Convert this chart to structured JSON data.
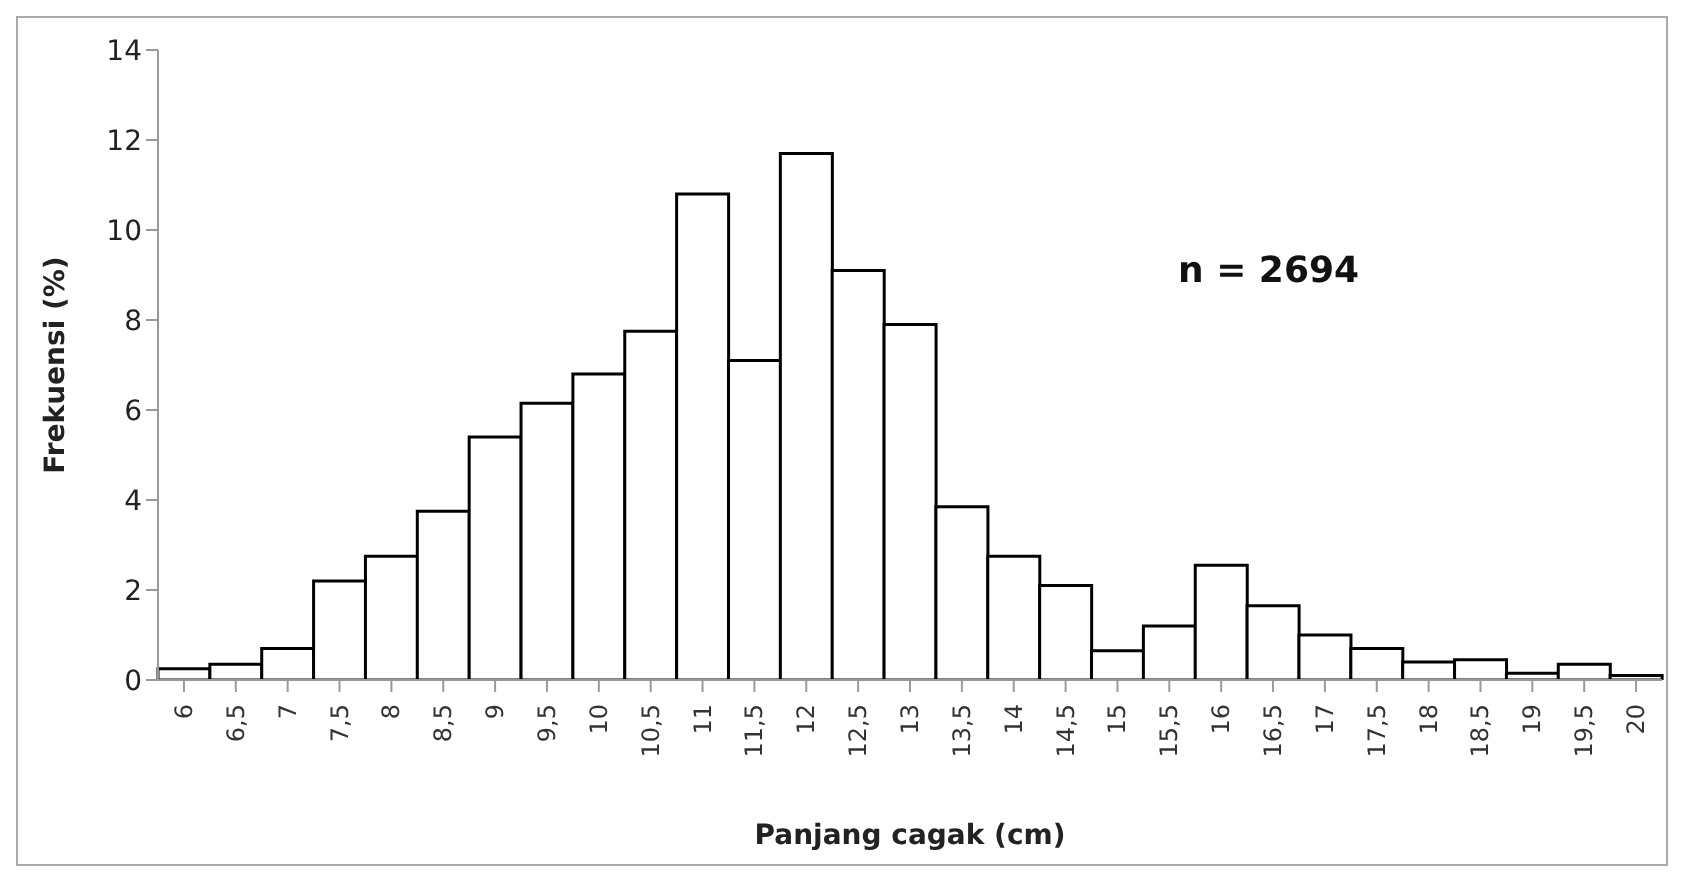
{
  "chart_data": {
    "type": "bar",
    "xlabel": "Panjang cagak (cm)",
    "ylabel": "Frekuensi (%)",
    "categories": [
      "6",
      "6,5",
      "7",
      "7,5",
      "8",
      "8,5",
      "9",
      "9,5",
      "10",
      "10,5",
      "11",
      "11,5",
      "12",
      "12,5",
      "13",
      "13,5",
      "14",
      "14,5",
      "15",
      "15,5",
      "16",
      "16,5",
      "17",
      "17,5",
      "18",
      "18,5",
      "19",
      "19,5",
      "20"
    ],
    "values": [
      0.25,
      0.35,
      0.7,
      2.2,
      2.75,
      3.75,
      5.4,
      6.15,
      6.8,
      7.75,
      10.8,
      7.1,
      11.7,
      9.1,
      7.9,
      3.85,
      2.75,
      2.1,
      0.65,
      1.2,
      2.55,
      1.65,
      1.0,
      0.7,
      0.4,
      0.45,
      0.15,
      0.35,
      0.1
    ],
    "color": "#ffffff",
    "ylim": [
      0,
      14
    ],
    "yticks": [
      0,
      2,
      4,
      6,
      8,
      10,
      12,
      14
    ],
    "grid": false,
    "legend": false,
    "annotations": [
      "n = 2694"
    ]
  }
}
